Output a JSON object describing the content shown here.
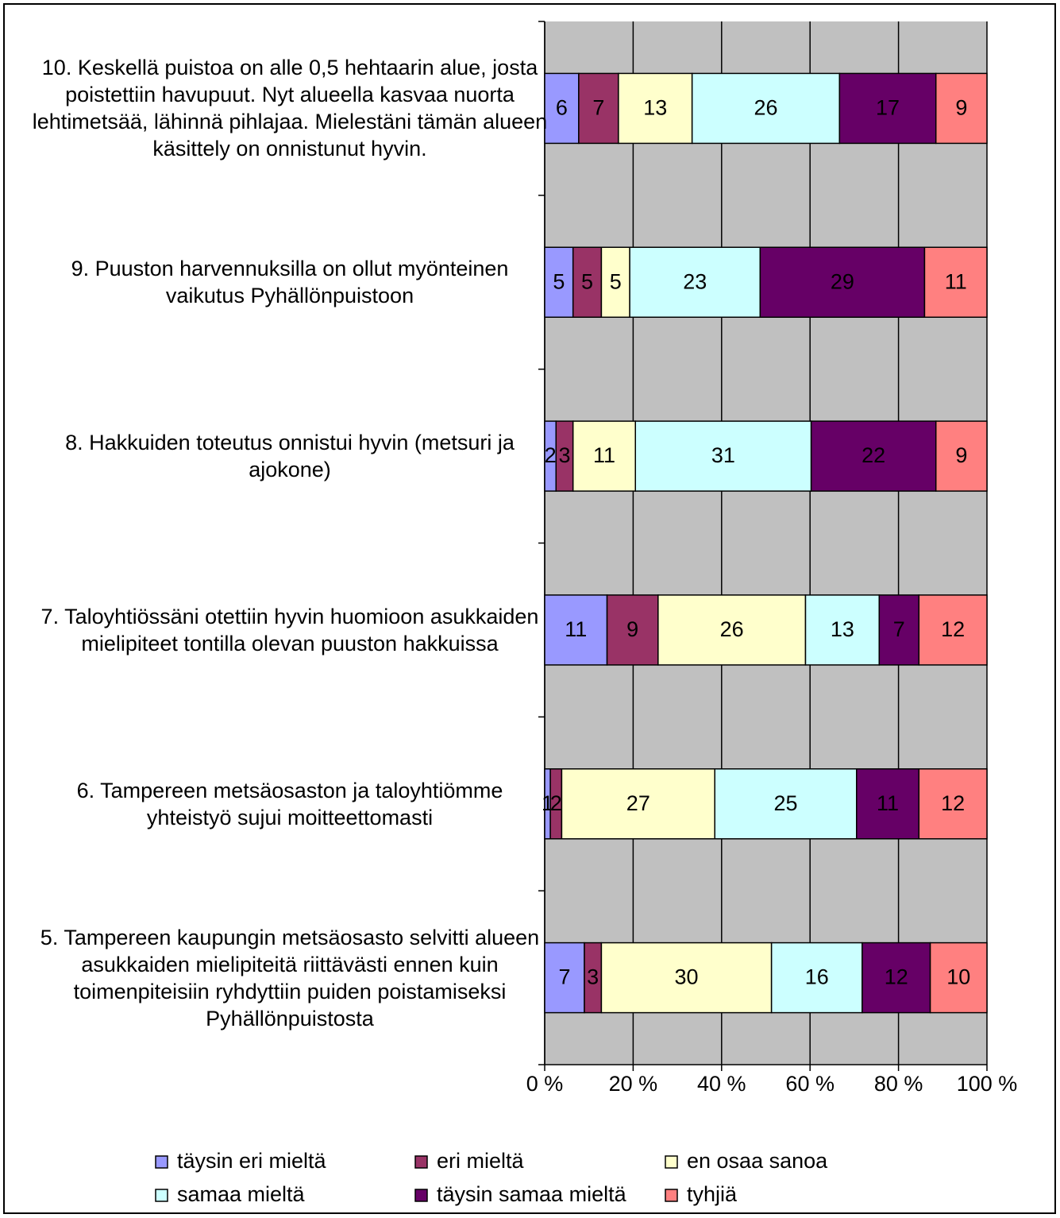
{
  "chart_data": {
    "type": "bar",
    "orientation": "horizontal",
    "stack": "percent",
    "categories": [
      "10. Keskellä puistoa on alle 0,5 hehtaarin alue, josta poistettiin havupuut. Nyt alueella kasvaa nuorta lehtimetsää, lähinnä pihlajaa. Mielestäni tämän alueen käsittely on onnistunut hyvin.",
      "9. Puuston harvennuksilla on ollut myönteinen vaikutus Pyhällönpuistoon",
      "8. Hakkuiden toteutus onnistui hyvin (metsuri ja ajokone)",
      "7. Taloyhtiössäni otettiin hyvin huomioon asukkaiden mielipiteet tontilla olevan puuston hakkuissa",
      "6. Tampereen metsäosaston ja taloyhtiömme yhteistyö sujui moitteettomasti",
      "5. Tampereen kaupungin metsäosasto selvitti alueen asukkaiden mielipiteitä riittävästi ennen kuin toimenpiteisiin ryhdyttiin puiden poistamiseksi Pyhällönpuistosta"
    ],
    "series": [
      {
        "name": "täysin eri mieltä",
        "color": "#9999ff",
        "values": [
          6,
          5,
          2,
          11,
          1,
          7
        ]
      },
      {
        "name": "eri mieltä",
        "color": "#993366",
        "values": [
          7,
          5,
          3,
          9,
          2,
          3
        ]
      },
      {
        "name": "en osaa sanoa",
        "color": "#ffffcc",
        "values": [
          13,
          5,
          11,
          26,
          27,
          30
        ]
      },
      {
        "name": "samaa mieltä",
        "color": "#ccffff",
        "values": [
          26,
          23,
          31,
          13,
          25,
          16
        ]
      },
      {
        "name": "täysin samaa mieltä",
        "color": "#660066",
        "values": [
          17,
          29,
          22,
          7,
          11,
          12
        ]
      },
      {
        "name": "tyhjiä",
        "color": "#ff8080",
        "values": [
          9,
          11,
          9,
          12,
          12,
          10
        ]
      }
    ],
    "xlim": [
      0,
      100
    ],
    "xticks": [
      {
        "value": 0,
        "label": "0 %"
      },
      {
        "value": 20,
        "label": "20 %"
      },
      {
        "value": 40,
        "label": "40 %"
      },
      {
        "value": 60,
        "label": "60 %"
      },
      {
        "value": 80,
        "label": "80 %"
      },
      {
        "value": 100,
        "label": "100 %"
      }
    ],
    "grid": true,
    "legend": "bottom"
  }
}
